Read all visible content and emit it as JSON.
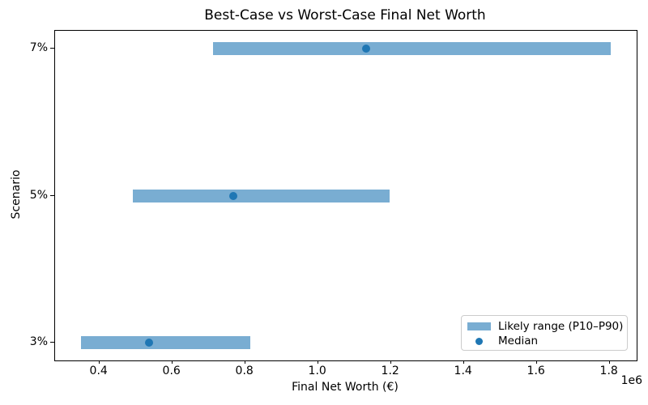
{
  "chart_data": {
    "type": "bar",
    "orientation": "horizontal",
    "title": "Best-Case vs Worst-Case Final Net Worth",
    "xlabel": "Final Net Worth (€)",
    "ylabel": "Scenario",
    "x_offset_label": "1e6",
    "categories": [
      "7%",
      "5%",
      "3%"
    ],
    "series": [
      {
        "name": "Likely range (P10–P90)",
        "type": "range_bar",
        "p10": [
          711000,
          492000,
          350000
        ],
        "p90": [
          1804000,
          1196000,
          815000
        ]
      },
      {
        "name": "Median",
        "type": "point",
        "values": [
          1131000,
          767000,
          537000
        ]
      }
    ],
    "xlim": [
      278400,
      1874000
    ],
    "x_ticks": [
      400000,
      600000,
      800000,
      1000000,
      1200000,
      1400000,
      1600000,
      1800000
    ],
    "x_tick_labels": [
      "0.4",
      "0.6",
      "0.8",
      "1.0",
      "1.2",
      "1.4",
      "1.6",
      "1.8"
    ],
    "grid": false,
    "legend_position": "lower right",
    "colors": {
      "range_bar": "#79add2",
      "median": "#1f77b4",
      "spine": "#000000",
      "legend_border": "#cccccc"
    }
  }
}
